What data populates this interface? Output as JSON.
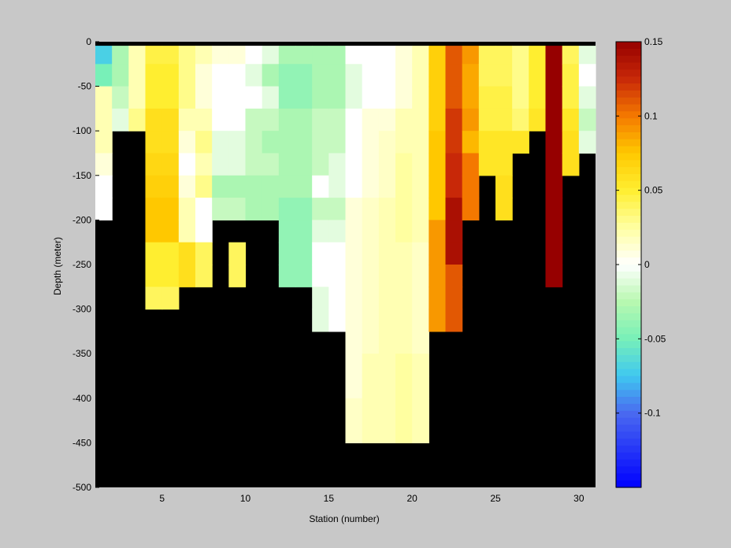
{
  "chart_data": {
    "type": "heatmap",
    "title": "",
    "xlabel": "Station (number)",
    "ylabel": "Depth (meter)",
    "xlim": [
      1,
      31
    ],
    "ylim": [
      -500,
      0
    ],
    "x_ticks": [
      5,
      10,
      15,
      20,
      25,
      30
    ],
    "y_ticks": [
      0,
      -50,
      -100,
      -150,
      -200,
      -250,
      -300,
      -350,
      -400,
      -450,
      -500
    ],
    "mask_color": "#000000",
    "background_color": "#c8c8c8",
    "colorbar": {
      "range": [
        -0.15,
        0.15
      ],
      "ticks": [
        0.15,
        0.1,
        0.05,
        0,
        -0.05,
        -0.1
      ],
      "tick_labels": [
        "0.15",
        "0.1",
        "0.05",
        "0",
        "-0.05",
        "-0.1"
      ],
      "colormap": [
        [
          -0.15,
          "#0000ff"
        ],
        [
          -0.1,
          "#4a6af0"
        ],
        [
          -0.075,
          "#3fc8f0"
        ],
        [
          -0.05,
          "#78f0b8"
        ],
        [
          -0.025,
          "#b8f8b0"
        ],
        [
          0.0,
          "#ffffff"
        ],
        [
          0.025,
          "#ffffa0"
        ],
        [
          0.05,
          "#ffee30"
        ],
        [
          0.075,
          "#ffc800"
        ],
        [
          0.1,
          "#f47800"
        ],
        [
          0.125,
          "#c82808"
        ],
        [
          0.15,
          "#960000"
        ]
      ]
    },
    "columns": [
      {
        "station": 1,
        "max_depth": 200,
        "values": [
          -0.07,
          -0.05,
          0.02,
          0.02,
          0.02,
          0.01,
          0.0,
          0.0
        ]
      },
      {
        "station": 2,
        "max_depth": 200,
        "values": [
          -0.03,
          -0.03,
          -0.02,
          -0.01,
          null,
          null,
          null,
          null
        ]
      },
      {
        "station": 3,
        "max_depth": 100,
        "values": [
          0.02,
          0.02,
          0.02,
          0.03,
          null,
          null,
          null,
          null
        ]
      },
      {
        "station": 4,
        "max_depth": 300,
        "values": [
          0.045,
          0.05,
          0.05,
          0.06,
          0.06,
          0.065,
          0.07,
          0.075,
          0.075,
          0.05,
          0.05,
          0.04
        ]
      },
      {
        "station": 5,
        "max_depth": 300,
        "values": [
          0.045,
          0.05,
          0.05,
          0.06,
          0.06,
          0.065,
          0.07,
          0.075,
          0.075,
          0.05,
          0.05,
          0.04
        ]
      },
      {
        "station": 6,
        "max_depth": 250,
        "values": [
          0.03,
          0.03,
          0.03,
          0.02,
          0.01,
          0.0,
          0.01,
          0.02,
          0.02,
          0.06,
          0.06
        ]
      },
      {
        "station": 7,
        "max_depth": 250,
        "values": [
          0.02,
          0.01,
          0.01,
          0.02,
          0.03,
          0.02,
          0.03,
          0.0,
          0.0,
          0.04,
          0.04
        ]
      },
      {
        "station": 8,
        "max_depth": 200,
        "values": [
          0.01,
          0.0,
          0.0,
          0.0,
          -0.01,
          -0.01,
          -0.03,
          -0.02
        ]
      },
      {
        "station": 9,
        "max_depth": 250,
        "values": [
          0.01,
          0.0,
          0.0,
          0.0,
          -0.01,
          -0.01,
          -0.03,
          -0.02,
          null,
          0.04,
          0.04
        ]
      },
      {
        "station": 10,
        "max_depth": 200,
        "values": [
          0.0,
          -0.01,
          0.0,
          -0.02,
          -0.02,
          -0.02,
          -0.03,
          -0.03
        ]
      },
      {
        "station": 11,
        "max_depth": 200,
        "values": [
          -0.01,
          -0.03,
          -0.01,
          -0.02,
          -0.03,
          -0.02,
          -0.03,
          -0.03
        ]
      },
      {
        "station": 12,
        "max_depth": 250,
        "values": [
          -0.03,
          -0.04,
          -0.04,
          -0.03,
          -0.03,
          -0.03,
          -0.03,
          -0.04,
          -0.04,
          -0.04,
          -0.04
        ]
      },
      {
        "station": 13,
        "max_depth": 250,
        "values": [
          -0.03,
          -0.04,
          -0.04,
          -0.03,
          -0.03,
          -0.03,
          -0.03,
          -0.04,
          -0.04,
          -0.04,
          -0.04
        ]
      },
      {
        "station": 14,
        "max_depth": 300,
        "values": [
          -0.03,
          -0.03,
          -0.03,
          -0.02,
          -0.02,
          -0.02,
          0.0,
          -0.02,
          -0.01,
          0.0,
          0.0,
          -0.01,
          -0.01
        ]
      },
      {
        "station": 15,
        "max_depth": 300,
        "values": [
          -0.03,
          -0.03,
          -0.03,
          -0.02,
          -0.02,
          -0.01,
          -0.01,
          -0.02,
          -0.01,
          0.0,
          0.0,
          0.0,
          0.0
        ]
      },
      {
        "station": 16,
        "max_depth": 400,
        "values": [
          0.0,
          -0.01,
          -0.01,
          0.0,
          0.0,
          0.0,
          0.0,
          0.01,
          0.01,
          0.01,
          0.01,
          0.01,
          0.01,
          0.01,
          0.01,
          0.01,
          0.015,
          0.015
        ]
      },
      {
        "station": 17,
        "max_depth": 400,
        "values": [
          0.0,
          0.0,
          0.0,
          0.01,
          0.01,
          0.01,
          0.01,
          0.015,
          0.015,
          0.015,
          0.015,
          0.015,
          0.015,
          0.015,
          0.02,
          0.02,
          0.02,
          0.02
        ]
      },
      {
        "station": 18,
        "max_depth": 400,
        "values": [
          0.0,
          0.0,
          0.0,
          0.01,
          0.015,
          0.015,
          0.015,
          0.02,
          0.02,
          0.02,
          0.02,
          0.02,
          0.02,
          0.02,
          0.02,
          0.02,
          0.02,
          0.02
        ]
      },
      {
        "station": 19,
        "max_depth": 400,
        "values": [
          0.01,
          0.01,
          0.01,
          0.02,
          0.02,
          0.025,
          0.025,
          0.025,
          0.025,
          0.02,
          0.02,
          0.02,
          0.02,
          0.02,
          0.025,
          0.025,
          0.025,
          0.025
        ]
      },
      {
        "station": 20,
        "max_depth": 400,
        "values": [
          0.02,
          0.02,
          0.02,
          0.02,
          0.02,
          0.02,
          0.02,
          0.02,
          0.02,
          0.015,
          0.015,
          0.015,
          0.015,
          0.015,
          0.02,
          0.02,
          0.02,
          0.02
        ]
      },
      {
        "station": 21,
        "max_depth": 300,
        "values": [
          0.07,
          0.07,
          0.07,
          0.07,
          0.075,
          0.075,
          0.075,
          0.075,
          0.09,
          0.09,
          0.09,
          0.09,
          0.09
        ]
      },
      {
        "station": 22,
        "max_depth": 300,
        "values": [
          0.11,
          0.11,
          0.11,
          0.12,
          0.12,
          0.125,
          0.125,
          0.14,
          0.14,
          0.14,
          0.11,
          0.11,
          0.11
        ]
      },
      {
        "station": 23,
        "max_depth": 200,
        "values": [
          0.09,
          0.085,
          0.085,
          0.09,
          0.08,
          0.1,
          0.1,
          0.1
        ]
      },
      {
        "station": 24,
        "max_depth": 150,
        "values": [
          0.04,
          0.04,
          0.045,
          0.045,
          0.055,
          0.055
        ]
      },
      {
        "station": 25,
        "max_depth": 200,
        "values": [
          0.04,
          0.04,
          0.045,
          0.045,
          0.055,
          0.055,
          0.06,
          0.06
        ]
      },
      {
        "station": 26,
        "max_depth": 125,
        "values": [
          0.03,
          0.03,
          0.03,
          0.035,
          0.055
        ]
      },
      {
        "station": 27,
        "max_depth": 100,
        "values": [
          0.05,
          0.05,
          0.05,
          0.055
        ]
      },
      {
        "station": 28,
        "max_depth": 250,
        "values": [
          0.15,
          0.15,
          0.15,
          0.15,
          0.15,
          0.15,
          0.15,
          0.15,
          0.15,
          0.15,
          0.15
        ]
      },
      {
        "station": 29,
        "max_depth": 150,
        "values": [
          0.04,
          0.045,
          0.045,
          0.055,
          0.06,
          0.06
        ]
      },
      {
        "station": 30,
        "max_depth": 125,
        "values": [
          -0.01,
          0.0,
          -0.01,
          -0.02,
          -0.01
        ]
      }
    ]
  }
}
